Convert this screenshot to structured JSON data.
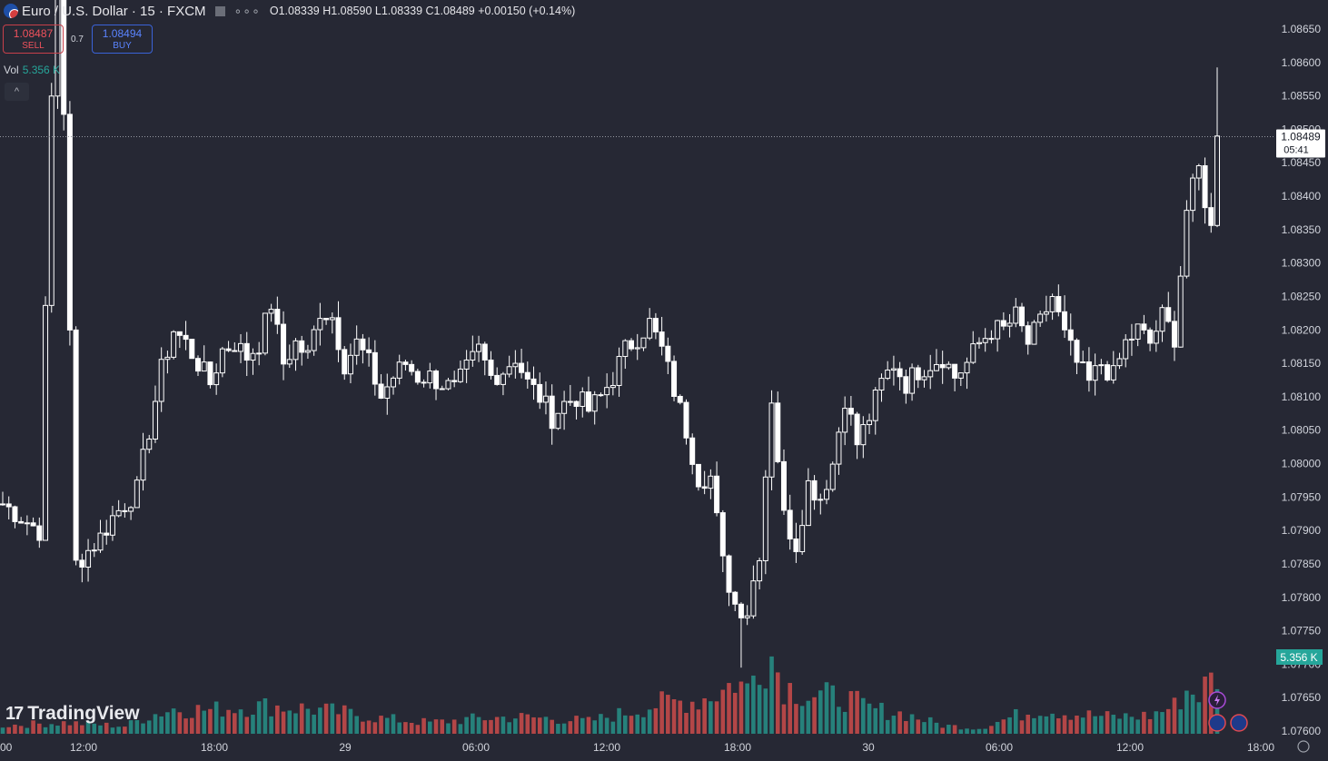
{
  "header": {
    "symbol": "Euro / U.S. Dollar · 15 · FXCM",
    "dots": "∘∘∘",
    "ohlc": "O1.08339 H1.08590 L1.08339 C1.08489 +0.00150 (+0.14%)"
  },
  "trade": {
    "sell_price": "1.08487",
    "sell_label": "SELL",
    "spread": "0.7",
    "buy_price": "1.08494",
    "buy_label": "BUY"
  },
  "volume_legend": {
    "label": "Vol",
    "value": "5.356 K"
  },
  "collapse_icon": "chevron-up-icon",
  "logo": {
    "text": "TradingView",
    "mark": "17"
  },
  "colors": {
    "background": "#262834",
    "candle": "#ffffff",
    "volume_up": "#26a69a",
    "volume_down": "#ef5350",
    "volume_label_bg": "#26a69a"
  },
  "chart_data": {
    "type": "candlestick",
    "interval": "15",
    "y_range": [
      1.076,
      1.0867
    ],
    "y_ticks": [
      "1.08650",
      "1.08600",
      "1.08550",
      "1.08500",
      "1.08450",
      "1.08400",
      "1.08350",
      "1.08300",
      "1.08250",
      "1.08200",
      "1.08150",
      "1.08100",
      "1.08050",
      "1.08000",
      "1.07950",
      "1.07900",
      "1.07850",
      "1.07800",
      "1.07750",
      "1.07700",
      "1.07650",
      "1.07600"
    ],
    "x_ticks": [
      "00",
      "12:00",
      "18:00",
      "29",
      "06:00",
      "12:00",
      "18:00",
      "30",
      "06:00",
      "12:00",
      "18:00"
    ],
    "last_price": "1.08489",
    "countdown": "05:41",
    "volume_last_label": "5.356 K",
    "close_path": [
      [
        0,
        1.0794
      ],
      [
        3,
        1.0792
      ],
      [
        6,
        1.079
      ],
      [
        9,
        1.0887
      ],
      [
        12,
        1.0785
      ],
      [
        16,
        1.0789
      ],
      [
        18,
        1.0792
      ],
      [
        22,
        1.0796
      ],
      [
        24,
        1.0805
      ],
      [
        26,
        1.0814
      ],
      [
        28,
        1.082
      ],
      [
        30,
        1.0818
      ],
      [
        32,
        1.0815
      ],
      [
        34,
        1.0812
      ],
      [
        36,
        1.0817
      ],
      [
        38,
        1.0818
      ],
      [
        40,
        1.0816
      ],
      [
        42,
        1.0818
      ],
      [
        44,
        1.0824
      ],
      [
        46,
        1.0815
      ],
      [
        48,
        1.0818
      ],
      [
        50,
        1.0816
      ],
      [
        52,
        1.0823
      ],
      [
        54,
        1.0822
      ],
      [
        56,
        1.0815
      ],
      [
        58,
        1.0818
      ],
      [
        60,
        1.0815
      ],
      [
        62,
        1.081
      ],
      [
        64,
        1.0813
      ],
      [
        66,
        1.0815
      ],
      [
        68,
        1.0813
      ],
      [
        70,
        1.0813
      ],
      [
        72,
        1.0812
      ],
      [
        74,
        1.0811
      ],
      [
        76,
        1.0814
      ],
      [
        78,
        1.0817
      ],
      [
        80,
        1.0813
      ],
      [
        82,
        1.0814
      ],
      [
        84,
        1.0816
      ],
      [
        86,
        1.0812
      ],
      [
        88,
        1.081
      ],
      [
        90,
        1.0807
      ],
      [
        92,
        1.0809
      ],
      [
        94,
        1.081
      ],
      [
        96,
        1.0808
      ],
      [
        98,
        1.081
      ],
      [
        100,
        1.0813
      ],
      [
        102,
        1.0817
      ],
      [
        104,
        1.0819
      ],
      [
        106,
        1.0821
      ],
      [
        108,
        1.0817
      ],
      [
        110,
        1.0811
      ],
      [
        112,
        1.0805
      ],
      [
        114,
        1.0798
      ],
      [
        116,
        1.0798
      ],
      [
        118,
        1.0785
      ],
      [
        120,
        1.0779
      ],
      [
        122,
        1.0778
      ],
      [
        124,
        1.0787
      ],
      [
        126,
        1.081
      ],
      [
        128,
        1.0792
      ],
      [
        130,
        1.0788
      ],
      [
        132,
        1.0797
      ],
      [
        134,
        1.0795
      ],
      [
        136,
        1.08
      ],
      [
        138,
        1.081
      ],
      [
        140,
        1.0803
      ],
      [
        142,
        1.0807
      ],
      [
        144,
        1.0812
      ],
      [
        146,
        1.0815
      ],
      [
        148,
        1.0812
      ],
      [
        150,
        1.0814
      ],
      [
        152,
        1.0815
      ],
      [
        154,
        1.0816
      ],
      [
        156,
        1.0813
      ],
      [
        158,
        1.0815
      ],
      [
        160,
        1.0818
      ],
      [
        162,
        1.082
      ],
      [
        164,
        1.082
      ],
      [
        166,
        1.0822
      ],
      [
        168,
        1.0818
      ],
      [
        170,
        1.0821
      ],
      [
        172,
        1.0825
      ],
      [
        174,
        1.0819
      ],
      [
        176,
        1.0815
      ],
      [
        178,
        1.0812
      ],
      [
        180,
        1.0815
      ],
      [
        182,
        1.0813
      ],
      [
        184,
        1.0818
      ],
      [
        186,
        1.082
      ],
      [
        188,
        1.0818
      ],
      [
        190,
        1.0822
      ],
      [
        192,
        1.0819
      ],
      [
        194,
        1.0838
      ],
      [
        196,
        1.0844
      ],
      [
        198,
        1.0835
      ],
      [
        199,
        1.0849
      ]
    ],
    "volume_path": [
      [
        0,
        60
      ],
      [
        10,
        80
      ],
      [
        20,
        55
      ],
      [
        24,
        130
      ],
      [
        28,
        180
      ],
      [
        34,
        170
      ],
      [
        38,
        190
      ],
      [
        44,
        200
      ],
      [
        50,
        180
      ],
      [
        56,
        150
      ],
      [
        62,
        110
      ],
      [
        70,
        80
      ],
      [
        78,
        110
      ],
      [
        84,
        120
      ],
      [
        90,
        110
      ],
      [
        96,
        90
      ],
      [
        102,
        150
      ],
      [
        108,
        220
      ],
      [
        114,
        240
      ],
      [
        118,
        310
      ],
      [
        120,
        380
      ],
      [
        122,
        320
      ],
      [
        124,
        520
      ],
      [
        126,
        560
      ],
      [
        128,
        350
      ],
      [
        132,
        280
      ],
      [
        138,
        260
      ],
      [
        142,
        180
      ],
      [
        148,
        140
      ],
      [
        154,
        60
      ],
      [
        160,
        40
      ],
      [
        166,
        130
      ],
      [
        170,
        180
      ],
      [
        176,
        140
      ],
      [
        182,
        120
      ],
      [
        188,
        130
      ],
      [
        192,
        200
      ],
      [
        194,
        310
      ],
      [
        196,
        290
      ],
      [
        198,
        380
      ],
      [
        199,
        420
      ]
    ]
  }
}
